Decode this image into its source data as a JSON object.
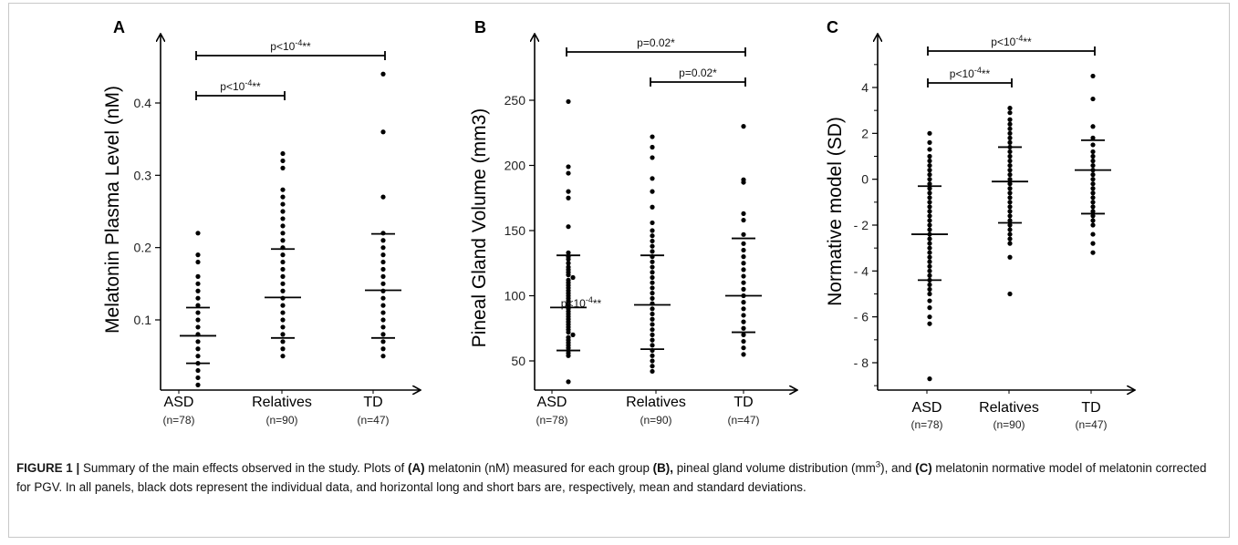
{
  "panels": [
    {
      "letter": "A",
      "ylabel": "Melatonin Plasma Level (nM)",
      "sig": [
        {
          "base": "p<10",
          "exp": "-4",
          "stars": "**"
        },
        {
          "base": "p<10",
          "exp": "-4",
          "stars": "**"
        }
      ]
    },
    {
      "letter": "B",
      "ylabel": "Pineal Gland Volume (mm3)",
      "sig": [
        {
          "base": "p=0.02*",
          "exp": "",
          "stars": ""
        },
        {
          "base": "p=0.02*",
          "exp": "",
          "stars": ""
        },
        {
          "base": "p<10",
          "exp": "-4",
          "stars": "**"
        }
      ]
    },
    {
      "letter": "C",
      "ylabel": "Normative model (SD)",
      "sig": [
        {
          "base": "p<10",
          "exp": "-4",
          "stars": "**"
        },
        {
          "base": "p<10",
          "exp": "-4",
          "stars": "**"
        }
      ]
    }
  ],
  "groups": [
    {
      "name": "ASD",
      "n": "(n=78)"
    },
    {
      "name": "Relatives",
      "n": "(n=90)"
    },
    {
      "name": "TD",
      "n": "(n=47)"
    }
  ],
  "caption": {
    "label": "FIGURE 1 |",
    "t1": " Summary of the main effects observed in the study. Plots of ",
    "a": "(A)",
    "t2": " melatonin (nM) measured for each group ",
    "b": "(B),",
    "t3": " pineal gland volume distribution (mm",
    "sup": "3",
    "t4": "), and ",
    "c": "(C)",
    "t5": " melatonin normative model of melatonin corrected for PGV. In all panels, black dots represent the individual data, and horizontal long and short bars are, respectively, mean and standard deviations."
  },
  "chart_data": [
    {
      "type": "scatter",
      "title": "A",
      "xlabel": "",
      "ylabel": "Melatonin Plasma Level (nM)",
      "categories": [
        "ASD",
        "Relatives",
        "TD"
      ],
      "yticks": [
        0.1,
        0.2,
        0.3,
        0.4
      ],
      "ylim": [
        0.0,
        0.485
      ],
      "series": [
        {
          "name": "ASD",
          "values": [
            0.22,
            0.19,
            0.18,
            0.16,
            0.15,
            0.14,
            0.13,
            0.12,
            0.11,
            0.1,
            0.09,
            0.08,
            0.07,
            0.06,
            0.05,
            0.04,
            0.03,
            0.02,
            0.01
          ],
          "mean": 0.078,
          "sd_low": 0.04,
          "sd_high": 0.117
        },
        {
          "name": "Relatives",
          "values": [
            0.33,
            0.32,
            0.31,
            0.28,
            0.27,
            0.26,
            0.25,
            0.24,
            0.23,
            0.22,
            0.21,
            0.2,
            0.19,
            0.18,
            0.17,
            0.16,
            0.15,
            0.14,
            0.13,
            0.12,
            0.11,
            0.1,
            0.09,
            0.08,
            0.07,
            0.06,
            0.05
          ],
          "mean": 0.131,
          "sd_low": 0.075,
          "sd_high": 0.198
        },
        {
          "name": "TD",
          "values": [
            0.44,
            0.36,
            0.27,
            0.22,
            0.21,
            0.2,
            0.19,
            0.18,
            0.17,
            0.16,
            0.15,
            0.14,
            0.13,
            0.12,
            0.11,
            0.1,
            0.09,
            0.08,
            0.07,
            0.06,
            0.05
          ],
          "mean": 0.141,
          "sd_low": 0.075,
          "sd_high": 0.219
        }
      ],
      "comparisons": [
        {
          "from": "ASD",
          "to": "TD",
          "y": 0.465,
          "label": "p<10-4**"
        },
        {
          "from": "ASD",
          "to": "Relatives",
          "y": 0.41,
          "label": "p<10-4**"
        }
      ]
    },
    {
      "type": "scatter",
      "title": "B",
      "xlabel": "",
      "ylabel": "Pineal Gland Volume (mm3)",
      "categories": [
        "ASD",
        "Relatives",
        "TD"
      ],
      "yticks": [
        50,
        100,
        150,
        200,
        250
      ],
      "ylim": [
        28,
        300
      ],
      "series": [
        {
          "name": "ASD",
          "values": [
            249,
            199,
            194,
            180,
            175,
            153,
            133,
            130,
            128,
            125,
            122,
            120,
            118,
            116,
            114,
            112,
            110,
            108,
            106,
            104,
            102,
            100,
            98,
            96,
            94,
            92,
            90,
            88,
            86,
            84,
            82,
            80,
            78,
            76,
            74,
            72,
            70,
            68,
            66,
            64,
            62,
            60,
            58,
            56,
            54,
            34
          ],
          "mean": 91,
          "sd_low": 58,
          "sd_high": 131
        },
        {
          "name": "Relatives",
          "values": [
            222,
            214,
            206,
            190,
            180,
            168,
            156,
            150,
            146,
            142,
            138,
            134,
            130,
            126,
            122,
            118,
            114,
            110,
            106,
            102,
            98,
            94,
            90,
            86,
            82,
            78,
            74,
            70,
            66,
            62,
            58,
            54,
            50,
            46,
            42
          ],
          "mean": 93,
          "sd_low": 59,
          "sd_high": 131
        },
        {
          "name": "TD",
          "values": [
            230,
            189,
            187,
            163,
            158,
            147,
            140,
            135,
            130,
            125,
            120,
            115,
            110,
            105,
            100,
            95,
            90,
            85,
            80,
            75,
            70,
            65,
            60,
            55
          ],
          "mean": 100,
          "sd_low": 72,
          "sd_high": 144
        }
      ],
      "comparisons": [
        {
          "from": "ASD",
          "to": "TD",
          "y": 287,
          "label": "p=0.02*"
        },
        {
          "from": "Relatives",
          "to": "TD",
          "y": 264,
          "label": "p=0.02*"
        },
        {
          "label": "p<10-4**",
          "y": 92
        }
      ]
    },
    {
      "type": "scatter",
      "title": "C",
      "xlabel": "",
      "ylabel": "Normative model (SD)",
      "categories": [
        "ASD",
        "Relatives",
        "TD"
      ],
      "yticks": [
        -8,
        -6,
        -4,
        -2,
        0,
        2,
        4
      ],
      "ylim": [
        -9.2,
        6.6
      ],
      "series": [
        {
          "name": "ASD",
          "values": [
            2.0,
            1.6,
            1.3,
            1.0,
            0.8,
            0.6,
            0.4,
            0.2,
            0.0,
            -0.2,
            -0.4,
            -0.6,
            -0.8,
            -1.0,
            -1.2,
            -1.4,
            -1.6,
            -1.8,
            -2.0,
            -2.2,
            -2.4,
            -2.6,
            -2.8,
            -3.0,
            -3.2,
            -3.4,
            -3.6,
            -3.8,
            -4.0,
            -4.2,
            -4.4,
            -4.6,
            -4.8,
            -5.0,
            -5.3,
            -5.6,
            -6.0,
            -6.3,
            -8.7
          ],
          "mean": -2.4,
          "sd_low": -4.4,
          "sd_high": -0.3
        },
        {
          "name": "Relatives",
          "values": [
            3.1,
            2.9,
            2.6,
            2.4,
            2.2,
            2.0,
            1.8,
            1.6,
            1.4,
            1.2,
            1.0,
            0.8,
            0.6,
            0.4,
            0.2,
            0.0,
            -0.2,
            -0.4,
            -0.6,
            -0.8,
            -1.0,
            -1.2,
            -1.4,
            -1.6,
            -1.8,
            -2.0,
            -2.2,
            -2.4,
            -2.6,
            -2.8,
            -3.4,
            -5.0
          ],
          "mean": -0.1,
          "sd_low": -1.9,
          "sd_high": 1.4
        },
        {
          "name": "TD",
          "values": [
            4.5,
            3.5,
            2.3,
            1.8,
            1.5,
            1.2,
            1.0,
            0.8,
            0.6,
            0.4,
            0.2,
            0.0,
            -0.2,
            -0.4,
            -0.6,
            -0.8,
            -1.0,
            -1.2,
            -1.4,
            -1.6,
            -1.8,
            -2.0,
            -2.4,
            -2.8,
            -3.2
          ],
          "mean": 0.4,
          "sd_low": -1.5,
          "sd_high": 1.7
        }
      ],
      "comparisons": [
        {
          "from": "ASD",
          "to": "TD",
          "y": 5.6,
          "label": "p<10-4**"
        },
        {
          "from": "ASD",
          "to": "Relatives",
          "y": 4.2,
          "label": "p<10-4**"
        }
      ]
    }
  ]
}
